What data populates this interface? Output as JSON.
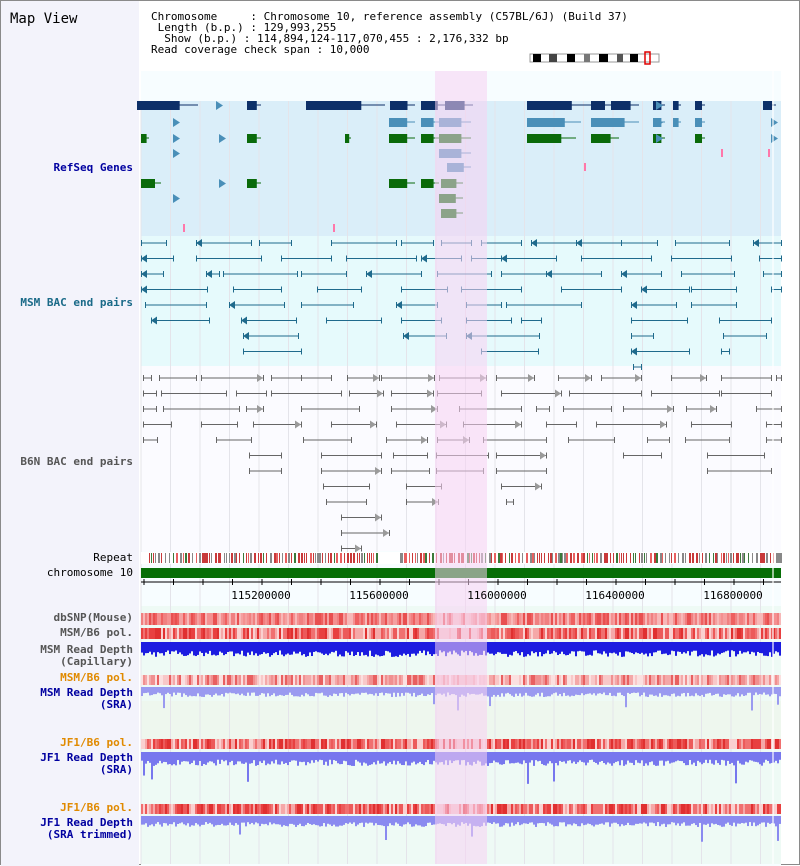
{
  "header": {
    "title": "Map View",
    "info_lines": [
      "Chromosome     : Chromosome 10, reference assembly (C57BL/6J) (Build 37)",
      " Length (b.p.) : 129,993,255",
      "  Show (b.p.) : 114,894,124-117,070,455 : 2,176,332 bp",
      "Read coverage check span : 10,000"
    ]
  },
  "tracks": {
    "refseq": "RefSeq Genes",
    "msm_bac": "MSM BAC end pairs",
    "b6n_bac": "B6N BAC end pairs",
    "repeat": "Repeat",
    "chromosome": "chromosome 10",
    "dbsnp": "dbSNP(Mouse)",
    "msm_b6_pol_1": "MSM/B6 pol.",
    "msm_depth_cap_1": "MSM Read Depth",
    "msm_depth_cap_2": "(Capillary)",
    "msm_b6_pol_2": "MSM/B6 pol.",
    "msm_depth_sra_1": "MSM Read Depth",
    "msm_depth_sra_2": "(SRA)",
    "jf1_b6_pol_1": "JF1/B6 pol.",
    "jf1_depth_1": "JF1 Read Depth",
    "jf1_depth_2": "(SRA)",
    "jf1_b6_pol_2": "JF1/B6 pol.",
    "jf1_depth_trim_1": "JF1 Read Depth",
    "jf1_depth_trim_2": "(SRA trimmed)"
  },
  "axis": {
    "ticks": [
      "115200000",
      "115600000",
      "116000000",
      "116400000",
      "116800000"
    ]
  },
  "colors": {
    "highlight": "#f8d2f2",
    "refseq_bg": "#daeef9",
    "msm_bg": "#e6fafc",
    "gene_dark": "#0d2f68",
    "gene_mid": "#4a8fb8",
    "gene_green": "#0a6a0a",
    "msm_pair": "#1f6a8c",
    "b6n_pair": "#666666",
    "chromosome_bar": "#066e06",
    "label_blue": "#0000a0",
    "label_teal": "#1a6a88",
    "label_gray": "#555555",
    "label_orange": "#e08a00"
  }
}
